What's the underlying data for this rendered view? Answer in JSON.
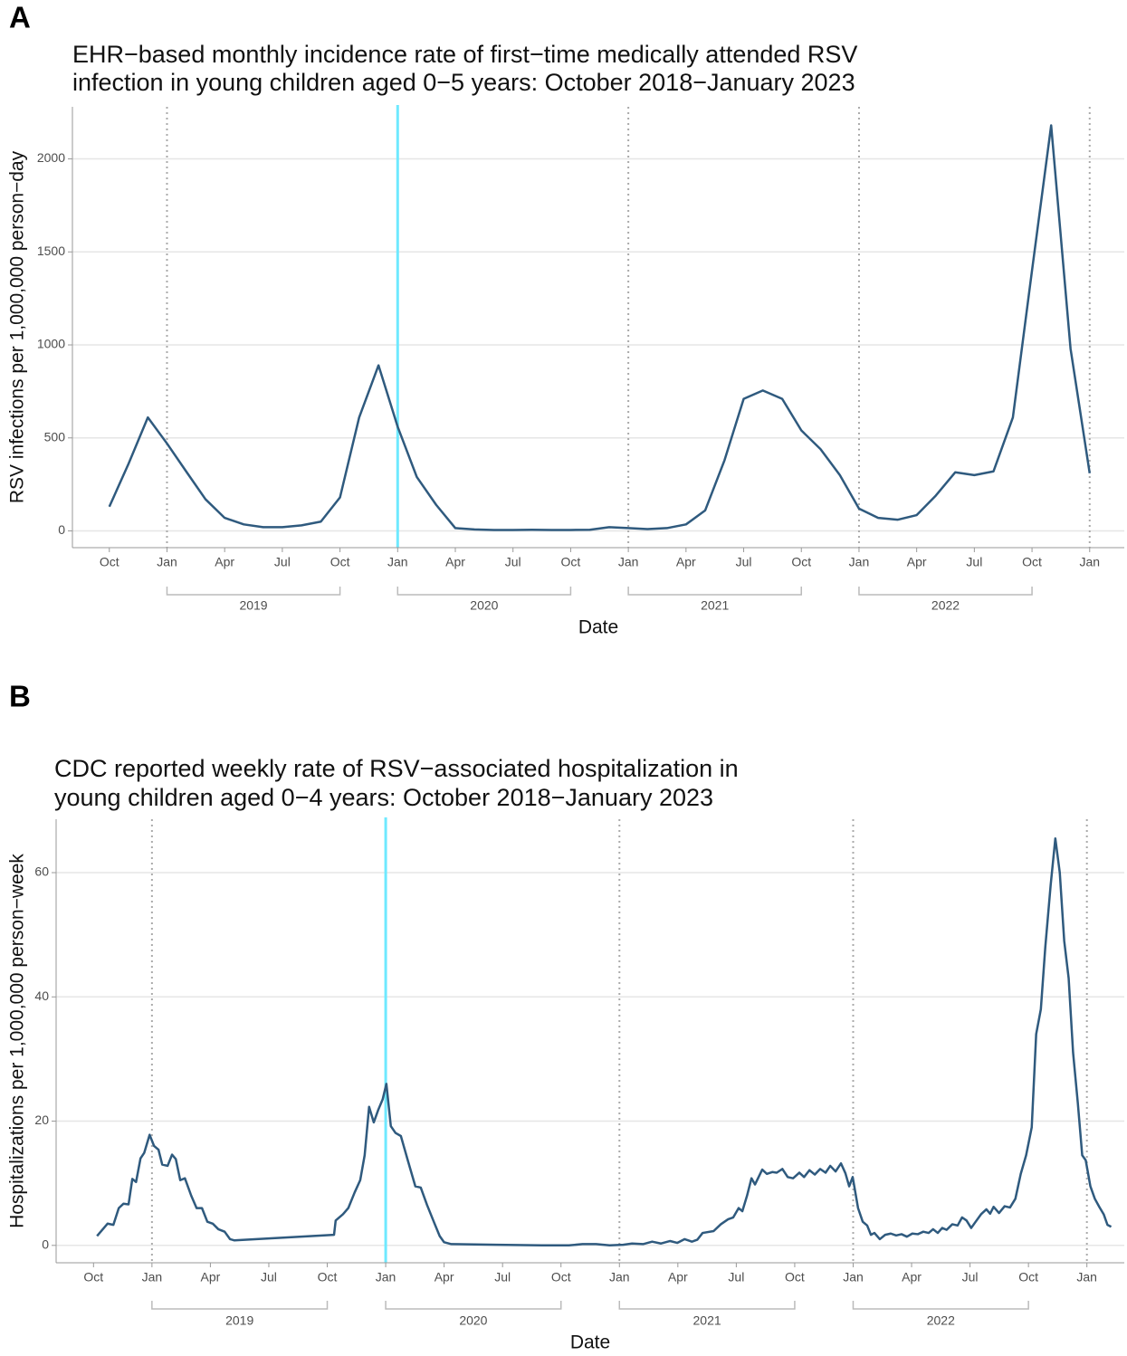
{
  "chart_data": [
    {
      "type": "line",
      "panel": "A",
      "title": [
        "EHR−based monthly incidence rate of first−time medically attended RSV",
        "infection in young children aged 0−5 years: October 2018−January 2023"
      ],
      "xlabel": "Date",
      "ylabel": "RSV infections per 1,000,000 person−day",
      "color": "#2f5a7e",
      "x": [
        2018.75,
        2018.833,
        2018.917,
        2019.0,
        2019.083,
        2019.167,
        2019.25,
        2019.333,
        2019.417,
        2019.5,
        2019.583,
        2019.667,
        2019.75,
        2019.833,
        2019.917,
        2020.0,
        2020.083,
        2020.167,
        2020.25,
        2020.333,
        2020.417,
        2020.5,
        2020.583,
        2020.667,
        2020.75,
        2020.833,
        2020.917,
        2021.0,
        2021.083,
        2021.167,
        2021.25,
        2021.333,
        2021.417,
        2021.5,
        2021.583,
        2021.667,
        2021.75,
        2021.833,
        2021.917,
        2022.0,
        2022.083,
        2022.167,
        2022.25,
        2022.333,
        2022.417,
        2022.5,
        2022.583,
        2022.667,
        2022.75,
        2022.833,
        2022.917,
        2023.0
      ],
      "values": [
        130,
        360,
        610,
        470,
        320,
        170,
        70,
        35,
        20,
        20,
        30,
        50,
        180,
        610,
        890,
        560,
        290,
        140,
        15,
        8,
        5,
        5,
        6,
        5,
        5,
        6,
        20,
        15,
        10,
        15,
        35,
        110,
        380,
        710,
        755,
        710,
        540,
        440,
        300,
        120,
        70,
        60,
        85,
        190,
        315,
        300,
        320,
        610,
        1400,
        2180,
        980,
        310
      ],
      "xlim": [
        2018.59,
        2023.15
      ],
      "ylim": [
        -90,
        2280
      ],
      "xticks": [
        {
          "value": 2018.75,
          "label": "Oct"
        },
        {
          "value": 2019.0,
          "label": "Jan"
        },
        {
          "value": 2019.25,
          "label": "Apr"
        },
        {
          "value": 2019.5,
          "label": "Jul"
        },
        {
          "value": 2019.75,
          "label": "Oct"
        },
        {
          "value": 2020.0,
          "label": "Jan"
        },
        {
          "value": 2020.25,
          "label": "Apr"
        },
        {
          "value": 2020.5,
          "label": "Jul"
        },
        {
          "value": 2020.75,
          "label": "Oct"
        },
        {
          "value": 2021.0,
          "label": "Jan"
        },
        {
          "value": 2021.25,
          "label": "Apr"
        },
        {
          "value": 2021.5,
          "label": "Jul"
        },
        {
          "value": 2021.75,
          "label": "Oct"
        },
        {
          "value": 2022.0,
          "label": "Jan"
        },
        {
          "value": 2022.25,
          "label": "Apr"
        },
        {
          "value": 2022.5,
          "label": "Jul"
        },
        {
          "value": 2022.75,
          "label": "Oct"
        },
        {
          "value": 2023.0,
          "label": "Jan"
        }
      ],
      "yticks": [
        0,
        500,
        1000,
        1500,
        2000
      ],
      "x_groups": [
        {
          "label": "2019",
          "start": 2019.0,
          "end": 2019.75
        },
        {
          "label": "2020",
          "start": 2020.0,
          "end": 2020.75
        },
        {
          "label": "2021",
          "start": 2021.0,
          "end": 2021.75
        },
        {
          "label": "2022",
          "start": 2022.0,
          "end": 2022.75
        }
      ],
      "dotted_vlines": [
        2019,
        2020,
        2021,
        2022,
        2023
      ],
      "highlight_line": {
        "x": 2020,
        "color": "#6fe9ff"
      },
      "grid": true
    },
    {
      "type": "line",
      "panel": "B",
      "title": [
        "CDC reported weekly rate of RSV−associated hospitalization in",
        "young children aged 0−4 years: October 2018−January 2023"
      ],
      "xlabel": "Date",
      "ylabel": "Hospitalizations per 1,000,000 person−week",
      "color": "#2f5a7e",
      "x": [
        2018.765,
        2018.81,
        2018.835,
        2018.858,
        2018.878,
        2018.9,
        2018.916,
        2018.932,
        2018.951,
        2018.967,
        2018.99,
        2019.009,
        2019.028,
        2019.044,
        2019.067,
        2019.086,
        2019.102,
        2019.121,
        2019.141,
        2019.168,
        2019.191,
        2019.214,
        2019.237,
        2019.26,
        2019.284,
        2019.311,
        2019.334,
        2019.353,
        2019.779,
        2019.786,
        2019.817,
        2019.84,
        2019.867,
        2019.891,
        2019.91,
        2019.929,
        2019.949,
        2019.968,
        2019.987,
        2020.003,
        2020.022,
        2020.042,
        2020.065,
        2020.096,
        2020.127,
        2020.15,
        2020.177,
        2020.208,
        2020.231,
        2020.25,
        2020.281,
        2020.475,
        2020.668,
        2020.784,
        2020.842,
        2020.9,
        2020.958,
        2021.016,
        2021.054,
        2021.101,
        2021.14,
        2021.178,
        2021.217,
        2021.248,
        2021.279,
        2021.31,
        2021.333,
        2021.356,
        2021.403,
        2021.434,
        2021.465,
        2021.487,
        2021.51,
        2021.526,
        2021.546,
        2021.565,
        2021.58,
        2021.611,
        2021.631,
        2021.654,
        2021.673,
        2021.697,
        2021.72,
        2021.743,
        2021.77,
        2021.79,
        2021.813,
        2021.836,
        2021.859,
        2021.882,
        2021.902,
        2021.925,
        2021.948,
        2021.967,
        2021.983,
        2021.998,
        2022.021,
        2022.041,
        2022.06,
        2022.076,
        2022.091,
        2022.114,
        2022.137,
        2022.161,
        2022.184,
        2022.207,
        2022.23,
        2022.253,
        2022.277,
        2022.3,
        2022.323,
        2022.342,
        2022.362,
        2022.381,
        2022.4,
        2022.424,
        2022.447,
        2022.466,
        2022.485,
        2022.505,
        2022.524,
        2022.547,
        2022.57,
        2022.586,
        2022.601,
        2022.624,
        2022.648,
        2022.671,
        2022.694,
        2022.717,
        2022.74,
        2022.764,
        2022.783,
        2022.803,
        2022.822,
        2022.845,
        2022.865,
        2022.884,
        2022.903,
        2022.922,
        2022.941,
        2022.961,
        2022.98,
        2022.995,
        2023.015,
        2023.034,
        2023.053,
        2023.072,
        2023.088,
        2023.104
      ],
      "values": [
        1.5,
        3.5,
        3.3,
        6,
        6.7,
        6.6,
        10.7,
        10.2,
        14,
        14.9,
        17.8,
        16,
        15.4,
        13,
        12.8,
        14.6,
        13.9,
        10.5,
        10.8,
        8,
        6,
        6,
        3.8,
        3.5,
        2.6,
        2.2,
        1,
        0.8,
        1.7,
        4,
        5,
        6,
        8.5,
        10.5,
        14.5,
        22.3,
        19.8,
        21.8,
        23.5,
        26,
        19.2,
        18.1,
        17.6,
        13.5,
        9.5,
        9.3,
        6.5,
        3.6,
        1.5,
        0.5,
        0.2,
        0.1,
        0,
        0,
        0.2,
        0.2,
        0,
        0.1,
        0.3,
        0.2,
        0.6,
        0.3,
        0.7,
        0.4,
        1,
        0.6,
        0.9,
        2,
        2.3,
        3.4,
        4.2,
        4.5,
        6,
        5.5,
        8,
        10.8,
        9.8,
        12.2,
        11.5,
        11.8,
        11.7,
        12.3,
        11,
        10.8,
        11.7,
        11,
        12.1,
        11.4,
        12.3,
        11.7,
        12.8,
        11.9,
        13.2,
        11.6,
        9.5,
        11,
        6,
        3.8,
        3.2,
        1.7,
        2,
        1,
        1.7,
        1.9,
        1.6,
        1.8,
        1.4,
        1.9,
        1.8,
        2.2,
        2,
        2.6,
        2,
        2.8,
        2.5,
        3.4,
        3.2,
        4.5,
        4,
        2.8,
        3.8,
        5,
        5.8,
        5.1,
        6.2,
        5.2,
        6.3,
        6.1,
        7.5,
        11.5,
        14.5,
        19,
        34,
        38,
        48,
        58,
        65.5,
        60,
        49,
        43,
        31,
        23,
        14.5,
        13.7,
        9.5,
        7.5,
        6.2,
        5,
        3.3,
        3
      ],
      "xlim": [
        2018.59,
        2023.16
      ],
      "ylim": [
        -2.8,
        68.6
      ],
      "xticks": [
        {
          "value": 2018.75,
          "label": "Oct"
        },
        {
          "value": 2019.0,
          "label": "Jan"
        },
        {
          "value": 2019.25,
          "label": "Apr"
        },
        {
          "value": 2019.5,
          "label": "Jul"
        },
        {
          "value": 2019.75,
          "label": "Oct"
        },
        {
          "value": 2020.0,
          "label": "Jan"
        },
        {
          "value": 2020.25,
          "label": "Apr"
        },
        {
          "value": 2020.5,
          "label": "Jul"
        },
        {
          "value": 2020.75,
          "label": "Oct"
        },
        {
          "value": 2021.0,
          "label": "Jan"
        },
        {
          "value": 2021.25,
          "label": "Apr"
        },
        {
          "value": 2021.5,
          "label": "Jul"
        },
        {
          "value": 2021.75,
          "label": "Oct"
        },
        {
          "value": 2022.0,
          "label": "Jan"
        },
        {
          "value": 2022.25,
          "label": "Apr"
        },
        {
          "value": 2022.5,
          "label": "Jul"
        },
        {
          "value": 2022.75,
          "label": "Oct"
        },
        {
          "value": 2023.0,
          "label": "Jan"
        }
      ],
      "yticks": [
        0,
        20,
        40,
        60
      ],
      "x_groups": [
        {
          "label": "2019",
          "start": 2019.0,
          "end": 2019.75
        },
        {
          "label": "2020",
          "start": 2020.0,
          "end": 2020.75
        },
        {
          "label": "2021",
          "start": 2021.0,
          "end": 2021.75
        },
        {
          "label": "2022",
          "start": 2022.0,
          "end": 2022.75
        }
      ],
      "dotted_vlines": [
        2019,
        2020,
        2021,
        2022,
        2023
      ],
      "highlight_line": {
        "x": 2020,
        "color": "#6fe9ff"
      },
      "grid": true
    }
  ]
}
